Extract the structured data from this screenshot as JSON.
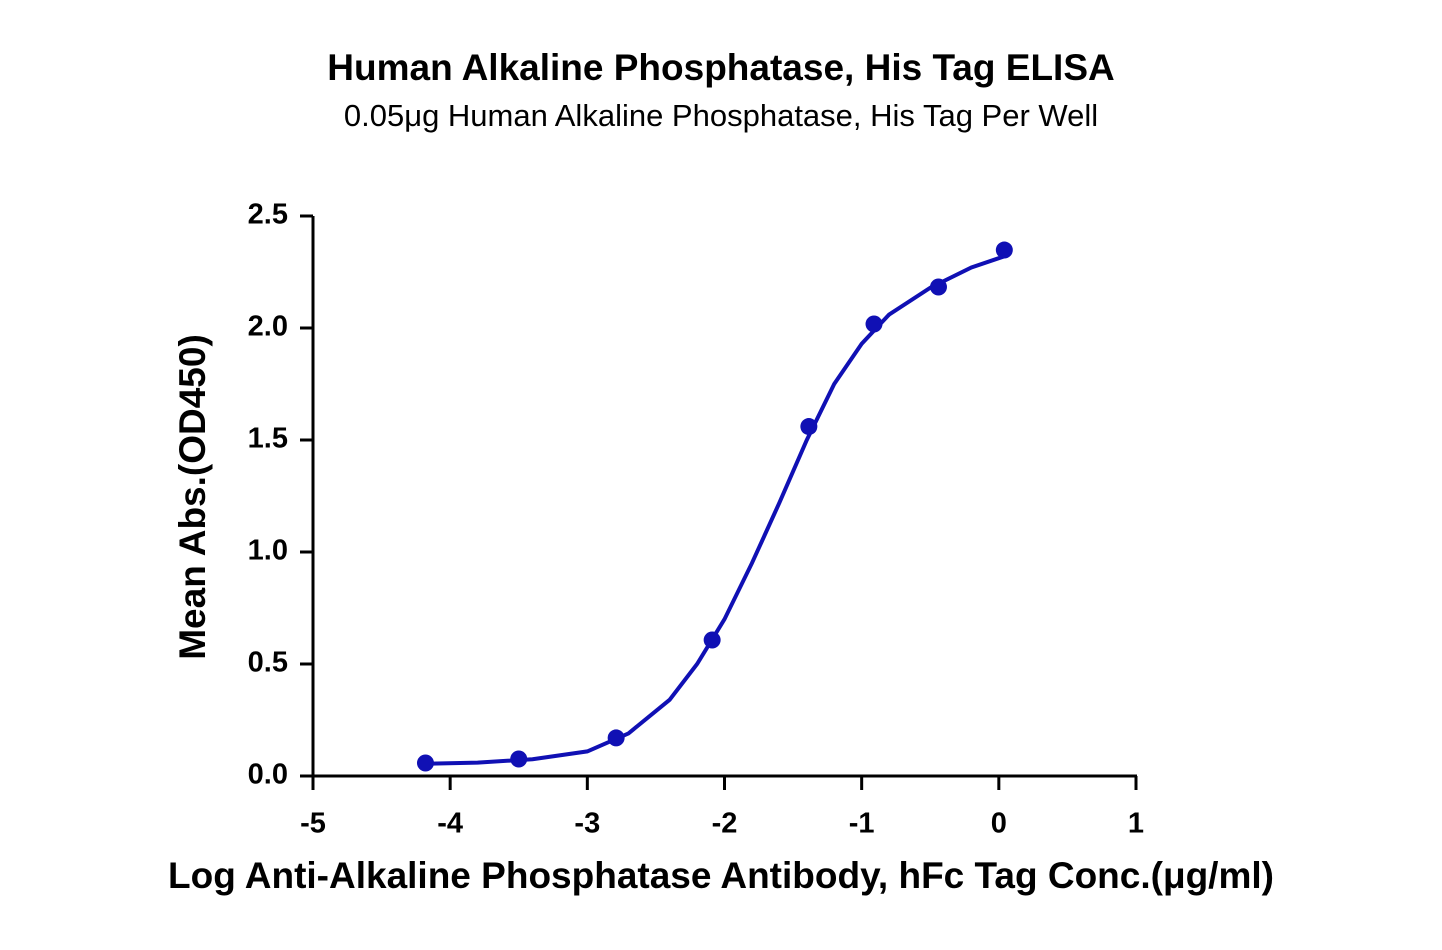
{
  "chart_data": {
    "type": "scatter",
    "title": "Human Alkaline Phosphatase, His Tag ELISA",
    "subtitle": "0.05μg Human Alkaline Phosphatase, His Tag Per Well",
    "x_label": "Log Anti-Alkaline Phosphatase Antibody, hFc Tag Conc.(μg/ml)",
    "y_label": "Mean Abs.(OD450)",
    "x": [
      -4.18,
      -3.5,
      -2.79,
      -2.09,
      -1.385,
      -0.91,
      -0.44,
      0.04
    ],
    "values": [
      0.058,
      0.076,
      0.17,
      0.607,
      1.56,
      2.018,
      2.183,
      2.348
    ],
    "fit": {
      "x": [
        -4.18,
        -3.8,
        -3.4,
        -3.0,
        -2.7,
        -2.4,
        -2.2,
        -2.0,
        -1.8,
        -1.6,
        -1.4,
        -1.2,
        -1.0,
        -0.8,
        -0.5,
        -0.2,
        0.04
      ],
      "values": [
        0.055,
        0.06,
        0.075,
        0.11,
        0.19,
        0.34,
        0.5,
        0.7,
        0.95,
        1.22,
        1.5,
        1.75,
        1.93,
        2.06,
        2.18,
        2.27,
        2.32
      ]
    },
    "color": "#1010b4",
    "xlim": [
      -5,
      1
    ],
    "xticks": [
      -5,
      -4,
      -3,
      -2,
      -1,
      0,
      1
    ],
    "ylim": [
      0,
      2.5
    ],
    "yticks": [
      {
        "value": 0,
        "label": "0.0"
      },
      0.5,
      {
        "value": 1,
        "label": "1.0"
      },
      1.5,
      {
        "value": 2,
        "label": "2.0"
      },
      2.5
    ]
  }
}
